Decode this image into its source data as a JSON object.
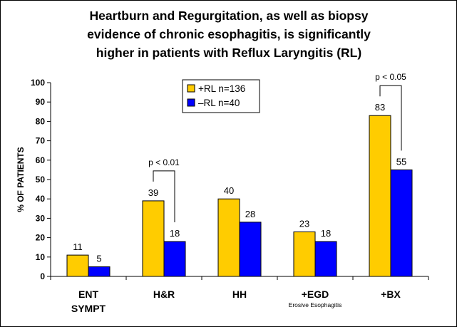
{
  "chart_data": {
    "type": "bar",
    "title_lines": [
      "Heartburn and Regurgitation, as well as biopsy",
      "evidence of chronic esophagitis, is significantly",
      "higher in patients with Reflux Laryngitis (RL)"
    ],
    "ylabel": "% OF PATIENTS",
    "ylim": [
      0,
      100
    ],
    "yticks": [
      0,
      10,
      20,
      30,
      40,
      50,
      60,
      70,
      80,
      90,
      100
    ],
    "grid": false,
    "legend_position": "top-center",
    "categories": [
      {
        "label": "ENT",
        "label2": "SYMPT",
        "sublabel": ""
      },
      {
        "label": "H&R",
        "label2": "",
        "sublabel": ""
      },
      {
        "label": "HH",
        "label2": "",
        "sublabel": ""
      },
      {
        "label": "+EGD",
        "label2": "",
        "sublabel": "Erosive Esophagitis"
      },
      {
        "label": "+BX",
        "label2": "",
        "sublabel": ""
      }
    ],
    "series": [
      {
        "name": "+RL  n=136",
        "color": "#FFCC00",
        "values": [
          11,
          39,
          40,
          23,
          83
        ]
      },
      {
        "name": "–RL  n=40",
        "color": "#0000FF",
        "values": [
          5,
          18,
          28,
          18,
          55
        ]
      }
    ],
    "annotations": [
      {
        "text": "p < 0.01",
        "category_index": 1
      },
      {
        "text": "p < 0.05",
        "category_index": 4
      }
    ]
  }
}
